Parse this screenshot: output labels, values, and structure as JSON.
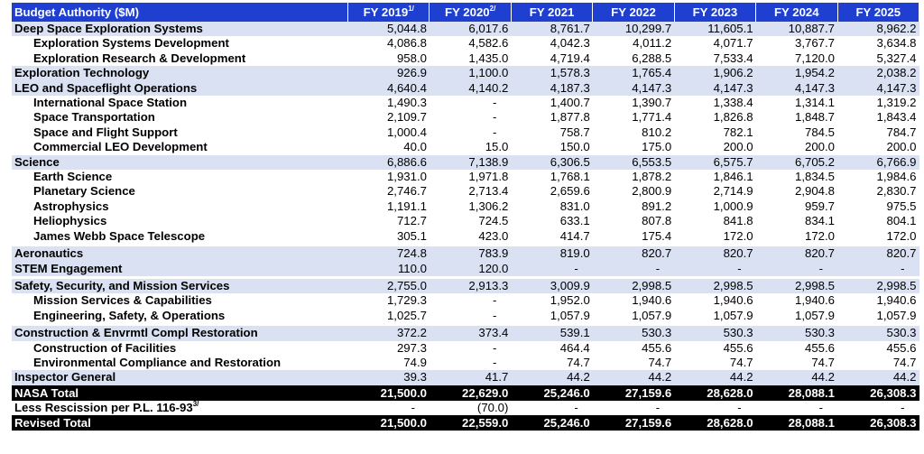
{
  "header": {
    "label": "Budget Authority ($M)",
    "years": [
      {
        "text": "FY 2019",
        "note": "1/"
      },
      {
        "text": "FY 2020",
        "note": "2/"
      },
      {
        "text": "FY 2021",
        "note": ""
      },
      {
        "text": "FY 2022",
        "note": ""
      },
      {
        "text": "FY 2023",
        "note": ""
      },
      {
        "text": "FY 2024",
        "note": ""
      },
      {
        "text": "FY 2025",
        "note": ""
      }
    ]
  },
  "rows": [
    {
      "label": "Deep Space Exploration Systems",
      "values": [
        "5,044.8",
        "6,017.6",
        "8,761.7",
        "10,299.7",
        "11,605.1",
        "10,887.7",
        "8,962.2"
      ]
    },
    {
      "label": "Exploration Systems Development",
      "values": [
        "4,086.8",
        "4,582.6",
        "4,042.3",
        "4,011.2",
        "4,071.7",
        "3,767.7",
        "3,634.8"
      ]
    },
    {
      "label": "Exploration Research & Development",
      "values": [
        "958.0",
        "1,435.0",
        "4,719.4",
        "6,288.5",
        "7,533.4",
        "7,120.0",
        "5,327.4"
      ]
    },
    {
      "label": "Exploration Technology",
      "values": [
        "926.9",
        "1,100.0",
        "1,578.3",
        "1,765.4",
        "1,906.2",
        "1,954.2",
        "2,038.2"
      ]
    },
    {
      "label": "LEO and Spaceflight Operations",
      "values": [
        "4,640.4",
        "4,140.2",
        "4,187.3",
        "4,147.3",
        "4,147.3",
        "4,147.3",
        "4,147.3"
      ]
    },
    {
      "label": "International Space Station",
      "values": [
        "1,490.3",
        "-",
        "1,400.7",
        "1,390.7",
        "1,338.4",
        "1,314.1",
        "1,319.2"
      ]
    },
    {
      "label": "Space Transportation",
      "values": [
        "2,109.7",
        "-",
        "1,877.8",
        "1,771.4",
        "1,826.8",
        "1,848.7",
        "1,843.4"
      ]
    },
    {
      "label": "Space and Flight Support",
      "values": [
        "1,000.4",
        "-",
        "758.7",
        "810.2",
        "782.1",
        "784.5",
        "784.7"
      ]
    },
    {
      "label": "Commercial LEO Development",
      "values": [
        "40.0",
        "15.0",
        "150.0",
        "175.0",
        "200.0",
        "200.0",
        "200.0"
      ]
    },
    {
      "label": "Science",
      "values": [
        "6,886.6",
        "7,138.9",
        "6,306.5",
        "6,553.5",
        "6,575.7",
        "6,705.2",
        "6,766.9"
      ]
    },
    {
      "label": "Earth Science",
      "values": [
        "1,931.0",
        "1,971.8",
        "1,768.1",
        "1,878.2",
        "1,846.1",
        "1,834.5",
        "1,984.6"
      ]
    },
    {
      "label": "Planetary Science",
      "values": [
        "2,746.7",
        "2,713.4",
        "2,659.6",
        "2,800.9",
        "2,714.9",
        "2,904.8",
        "2,830.7"
      ]
    },
    {
      "label": "Astrophysics",
      "values": [
        "1,191.1",
        "1,306.2",
        "831.0",
        "891.2",
        "1,000.9",
        "959.7",
        "975.5"
      ]
    },
    {
      "label": "Heliophysics",
      "values": [
        "712.7",
        "724.5",
        "633.1",
        "807.8",
        "841.8",
        "834.1",
        "804.1"
      ]
    },
    {
      "label": "James Webb Space Telescope",
      "values": [
        "305.1",
        "423.0",
        "414.7",
        "175.4",
        "172.0",
        "172.0",
        "172.0"
      ]
    },
    {
      "label": "Aeronautics",
      "values": [
        "724.8",
        "783.9",
        "819.0",
        "820.7",
        "820.7",
        "820.7",
        "820.7"
      ]
    },
    {
      "label": "STEM Engagement",
      "values": [
        "110.0",
        "120.0",
        "-",
        "-",
        "-",
        "-",
        "-"
      ]
    },
    {
      "label": "Safety, Security, and Mission Services",
      "values": [
        "2,755.0",
        "2,913.3",
        "3,009.9",
        "2,998.5",
        "2,998.5",
        "2,998.5",
        "2,998.5"
      ]
    },
    {
      "label": "Mission Services & Capabilities",
      "values": [
        "1,729.3",
        "-",
        "1,952.0",
        "1,940.6",
        "1,940.6",
        "1,940.6",
        "1,940.6"
      ]
    },
    {
      "label": "Engineering, Safety, & Operations",
      "values": [
        "1,025.7",
        "-",
        "1,057.9",
        "1,057.9",
        "1,057.9",
        "1,057.9",
        "1,057.9"
      ]
    },
    {
      "label": "Construction & Envrmtl Compl Restoration",
      "values": [
        "372.2",
        "373.4",
        "539.1",
        "530.3",
        "530.3",
        "530.3",
        "530.3"
      ]
    },
    {
      "label": "Construction of Facilities",
      "values": [
        "297.3",
        "-",
        "464.4",
        "455.6",
        "455.6",
        "455.6",
        "455.6"
      ]
    },
    {
      "label": "Environmental Compliance and Restoration",
      "values": [
        "74.9",
        "-",
        "74.7",
        "74.7",
        "74.7",
        "74.7",
        "74.7"
      ]
    },
    {
      "label": "Inspector General",
      "values": [
        "39.3",
        "41.7",
        "44.2",
        "44.2",
        "44.2",
        "44.2",
        "44.2"
      ]
    },
    {
      "label": "NASA Total",
      "values": [
        "21,500.0",
        "22,629.0",
        "25,246.0",
        "27,159.6",
        "28,628.0",
        "28,088.1",
        "26,308.3"
      ]
    },
    {
      "label": "Less Rescission per P.L. 116-93",
      "note": "3/",
      "values": [
        "-",
        "(70.0)",
        "-",
        "-",
        "-",
        "-",
        "-"
      ]
    },
    {
      "label": "Revised Total",
      "values": [
        "21,500.0",
        "22,559.0",
        "25,246.0",
        "27,159.6",
        "28,628.0",
        "28,088.1",
        "26,308.3"
      ]
    }
  ],
  "colors": {
    "header_bg": "#1f3fd1",
    "major_row_bg": "#d9e1f2",
    "total_row_bg": "#000000"
  }
}
